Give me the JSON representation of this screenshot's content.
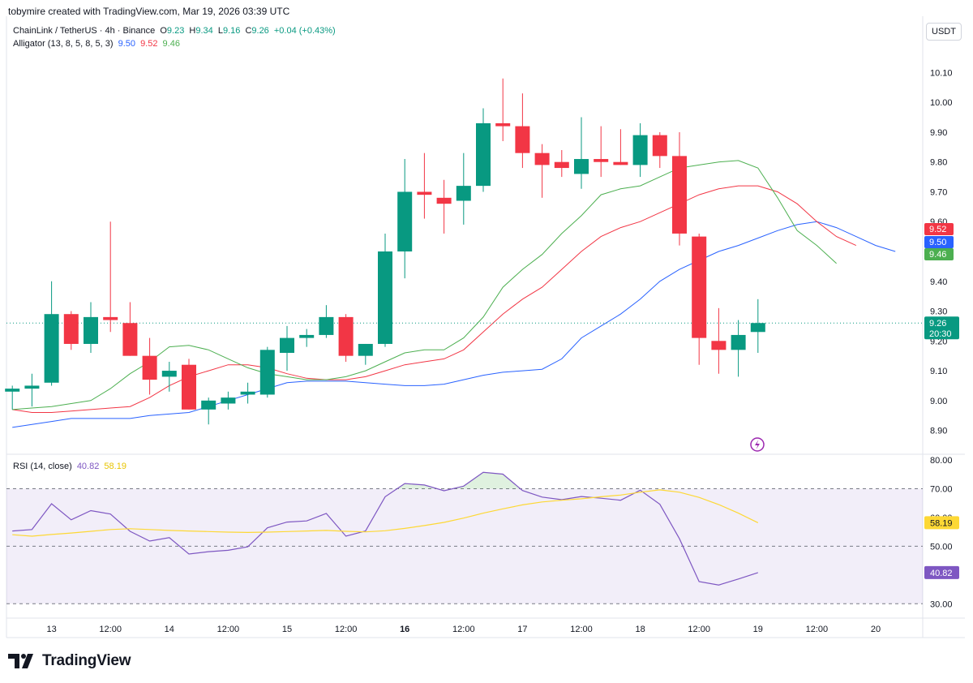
{
  "header": {
    "created_by": "tobymire created with TradingView.com, Mar 19, 2026 03:39 UTC"
  },
  "price_legend": {
    "symbol": "ChainLink / TetherUS · 4h · Binance",
    "o_label": "O",
    "o": "9.23",
    "h_label": "H",
    "h": "9.34",
    "l_label": "L",
    "l": "9.16",
    "c_label": "C",
    "c": "9.26",
    "change": "+0.04 (+0.43%)"
  },
  "alligator_legend": {
    "name": "Alligator (13, 8, 5, 8, 5, 3)",
    "jaw": "9.50",
    "teeth": "9.52",
    "lips": "9.46"
  },
  "rsi_legend": {
    "name": "RSI (14, close)",
    "rsi": "40.82",
    "ma": "58.19"
  },
  "unit": "USDT",
  "brand": "TradingView",
  "colors": {
    "up": "#089981",
    "down": "#f23645",
    "jaw": "#2962ff",
    "teeth": "#f23645",
    "lips": "#4caf50",
    "rsi": "#7e57c2",
    "rsi_ma": "#fdd835",
    "rsi_band": "#7e57c2"
  },
  "chart_data": [
    {
      "type": "candlestick",
      "title": "ChainLink / TetherUS · 4h · Binance",
      "ylim": [
        8.82,
        10.18
      ],
      "y_ticks": [
        "10.10",
        "10.00",
        "9.90",
        "9.80",
        "9.70",
        "9.60",
        "9.50",
        "9.40",
        "9.30",
        "9.20",
        "9.10",
        "9.00",
        "8.90"
      ],
      "x_ticks": [
        {
          "label": "13",
          "bar": 2,
          "bold": false
        },
        {
          "label": "12:00",
          "bar": 5,
          "bold": false
        },
        {
          "label": "14",
          "bar": 8,
          "bold": false
        },
        {
          "label": "12:00",
          "bar": 11,
          "bold": false
        },
        {
          "label": "15",
          "bar": 14,
          "bold": false
        },
        {
          "label": "12:00",
          "bar": 17,
          "bold": false
        },
        {
          "label": "16",
          "bar": 20,
          "bold": true
        },
        {
          "label": "12:00",
          "bar": 23,
          "bold": false
        },
        {
          "label": "17",
          "bar": 26,
          "bold": false
        },
        {
          "label": "12:00",
          "bar": 29,
          "bold": false
        },
        {
          "label": "18",
          "bar": 32,
          "bold": false
        },
        {
          "label": "12:00",
          "bar": 35,
          "bold": false
        },
        {
          "label": "19",
          "bar": 38,
          "bold": false
        },
        {
          "label": "12:00",
          "bar": 41,
          "bold": false
        },
        {
          "label": "20",
          "bar": 44,
          "bold": false
        }
      ],
      "candles": [
        [
          9.03,
          9.05,
          8.97,
          9.04
        ],
        [
          9.04,
          9.09,
          8.98,
          9.05
        ],
        [
          9.06,
          9.4,
          9.05,
          9.29
        ],
        [
          9.29,
          9.3,
          9.17,
          9.19
        ],
        [
          9.19,
          9.33,
          9.16,
          9.28
        ],
        [
          9.28,
          9.6,
          9.23,
          9.27
        ],
        [
          9.26,
          9.33,
          9.15,
          9.15
        ],
        [
          9.15,
          9.21,
          9.02,
          9.07
        ],
        [
          9.08,
          9.13,
          9.03,
          9.1
        ],
        [
          9.12,
          9.14,
          8.97,
          8.97
        ],
        [
          8.97,
          9.01,
          8.92,
          9.0
        ],
        [
          8.99,
          9.03,
          8.97,
          9.01
        ],
        [
          9.02,
          9.06,
          8.99,
          9.03
        ],
        [
          9.02,
          9.18,
          9.01,
          9.17
        ],
        [
          9.16,
          9.25,
          9.1,
          9.21
        ],
        [
          9.21,
          9.24,
          9.18,
          9.22
        ],
        [
          9.22,
          9.32,
          9.21,
          9.28
        ],
        [
          9.28,
          9.29,
          9.13,
          9.15
        ],
        [
          9.15,
          9.19,
          9.12,
          9.19
        ],
        [
          9.19,
          9.56,
          9.18,
          9.5
        ],
        [
          9.5,
          9.81,
          9.41,
          9.7
        ],
        [
          9.7,
          9.83,
          9.61,
          9.69
        ],
        [
          9.68,
          9.74,
          9.56,
          9.66
        ],
        [
          9.67,
          9.83,
          9.59,
          9.72
        ],
        [
          9.72,
          9.98,
          9.7,
          9.93
        ],
        [
          9.93,
          10.08,
          9.87,
          9.92
        ],
        [
          9.92,
          10.03,
          9.78,
          9.83
        ],
        [
          9.83,
          9.86,
          9.68,
          9.79
        ],
        [
          9.8,
          9.84,
          9.75,
          9.78
        ],
        [
          9.76,
          9.95,
          9.71,
          9.81
        ],
        [
          9.81,
          9.92,
          9.75,
          9.8
        ],
        [
          9.8,
          9.91,
          9.79,
          9.79
        ],
        [
          9.79,
          9.93,
          9.75,
          9.89
        ],
        [
          9.89,
          9.9,
          9.78,
          9.82
        ],
        [
          9.82,
          9.9,
          9.52,
          9.56
        ],
        [
          9.55,
          9.56,
          9.12,
          9.21
        ],
        [
          9.2,
          9.31,
          9.09,
          9.17
        ],
        [
          9.17,
          9.27,
          9.08,
          9.22
        ],
        [
          9.23,
          9.34,
          9.16,
          9.26
        ]
      ],
      "series": [
        {
          "name": "Jaw",
          "start_bar": 0,
          "values": [
            8.91,
            8.92,
            8.93,
            8.94,
            8.94,
            8.94,
            8.94,
            8.95,
            8.955,
            8.96,
            8.98,
            9.0,
            9.02,
            9.04,
            9.06,
            9.065,
            9.065,
            9.065,
            9.06,
            9.055,
            9.05,
            9.05,
            9.055,
            9.07,
            9.085,
            9.095,
            9.1,
            9.105,
            9.14,
            9.21,
            9.25,
            9.29,
            9.34,
            9.4,
            9.44,
            9.47,
            9.5,
            9.52,
            9.545,
            9.57,
            9.59,
            9.6,
            9.58,
            9.55,
            9.52,
            9.5
          ]
        },
        {
          "name": "Teeth",
          "start_bar": 0,
          "values": [
            8.97,
            8.96,
            8.96,
            8.965,
            8.97,
            8.975,
            8.98,
            9.01,
            9.05,
            9.08,
            9.1,
            9.12,
            9.12,
            9.11,
            9.09,
            9.075,
            9.07,
            9.07,
            9.08,
            9.1,
            9.12,
            9.13,
            9.14,
            9.17,
            9.23,
            9.29,
            9.34,
            9.38,
            9.44,
            9.5,
            9.55,
            9.58,
            9.6,
            9.63,
            9.66,
            9.69,
            9.71,
            9.72,
            9.72,
            9.7,
            9.66,
            9.6,
            9.55,
            9.52
          ]
        },
        {
          "name": "Lips",
          "start_bar": 0,
          "values": [
            8.97,
            8.975,
            8.98,
            8.99,
            9.0,
            9.04,
            9.09,
            9.13,
            9.18,
            9.185,
            9.17,
            9.14,
            9.11,
            9.09,
            9.08,
            9.07,
            9.07,
            9.08,
            9.1,
            9.13,
            9.16,
            9.17,
            9.17,
            9.21,
            9.28,
            9.38,
            9.44,
            9.49,
            9.56,
            9.62,
            9.69,
            9.71,
            9.72,
            9.75,
            9.78,
            9.79,
            9.8,
            9.805,
            9.78,
            9.68,
            9.57,
            9.52,
            9.46
          ]
        }
      ],
      "last_labels": [
        {
          "name": "Teeth",
          "value": "9.52"
        },
        {
          "name": "Jaw",
          "value": "9.50"
        },
        {
          "name": "Lips",
          "value": "9.46"
        },
        {
          "name": "Close",
          "value": "9.26",
          "countdown": "20:30"
        }
      ]
    },
    {
      "type": "line",
      "title": "RSI (14, close)",
      "ylim": [
        25,
        82
      ],
      "y_ticks": [
        "80.00",
        "70.00",
        "60.00",
        "50.00",
        "40.00",
        "30.00"
      ],
      "bands": [
        70,
        50,
        30
      ],
      "series": [
        {
          "name": "RSI",
          "values": [
            55.3,
            55.8,
            64.8,
            59.2,
            62.4,
            61.2,
            55.2,
            51.8,
            53.0,
            47.3,
            48.1,
            48.6,
            49.8,
            56.4,
            58.4,
            58.8,
            61.4,
            53.5,
            55.3,
            67.2,
            71.8,
            71.3,
            69.3,
            70.9,
            75.7,
            75.1,
            69.4,
            67.1,
            66.2,
            67.3,
            66.7,
            66.0,
            69.5,
            64.6,
            52.6,
            37.7,
            36.5,
            38.6,
            40.82
          ]
        },
        {
          "name": "RSI-based MA",
          "values": [
            54.0,
            53.5,
            54.1,
            54.6,
            55.2,
            55.8,
            56.1,
            55.8,
            55.5,
            55.3,
            55.1,
            54.9,
            54.8,
            54.9,
            55.1,
            55.3,
            55.5,
            55.2,
            55.0,
            55.4,
            56.2,
            57.2,
            58.3,
            59.8,
            61.5,
            63.0,
            64.4,
            65.4,
            66.0,
            66.5,
            67.2,
            67.8,
            68.8,
            69.6,
            68.8,
            67.0,
            64.5,
            61.5,
            58.19
          ]
        }
      ]
    }
  ]
}
